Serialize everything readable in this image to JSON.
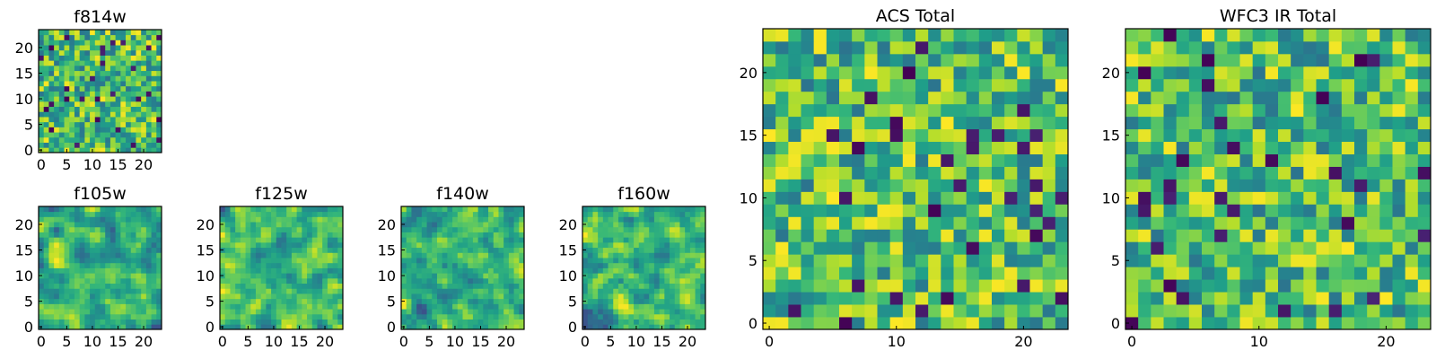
{
  "figure": {
    "colormap": "viridis"
  },
  "chart_data": [
    {
      "type": "heatmap",
      "title": "f814w",
      "grid_size": 24,
      "xlim": [
        0,
        24
      ],
      "ylim": [
        0,
        24
      ],
      "xticks": [
        0,
        5,
        10,
        15,
        20
      ],
      "yticks": [
        0,
        5,
        10,
        15,
        20
      ],
      "seed": 814,
      "smoothing": 0
    },
    {
      "type": "heatmap",
      "title": "f105w",
      "grid_size": 24,
      "xlim": [
        0,
        24
      ],
      "ylim": [
        0,
        24
      ],
      "xticks": [
        0,
        5,
        10,
        15,
        20
      ],
      "yticks": [
        0,
        5,
        10,
        15,
        20
      ],
      "seed": 105,
      "smoothing": 1
    },
    {
      "type": "heatmap",
      "title": "f125w",
      "grid_size": 24,
      "xlim": [
        0,
        24
      ],
      "ylim": [
        0,
        24
      ],
      "xticks": [
        0,
        5,
        10,
        15,
        20
      ],
      "yticks": [
        0,
        5,
        10,
        15,
        20
      ],
      "seed": 125,
      "smoothing": 1
    },
    {
      "type": "heatmap",
      "title": "f140w",
      "grid_size": 24,
      "xlim": [
        0,
        24
      ],
      "ylim": [
        0,
        24
      ],
      "xticks": [
        0,
        5,
        10,
        15,
        20
      ],
      "yticks": [
        0,
        5,
        10,
        15,
        20
      ],
      "seed": 140,
      "smoothing": 1
    },
    {
      "type": "heatmap",
      "title": "f160w",
      "grid_size": 24,
      "xlim": [
        0,
        24
      ],
      "ylim": [
        0,
        24
      ],
      "xticks": [
        0,
        5,
        10,
        15,
        20
      ],
      "yticks": [
        0,
        5,
        10,
        15,
        20
      ],
      "seed": 160,
      "smoothing": 1
    },
    {
      "type": "heatmap",
      "title": "ACS Total",
      "grid_size": 24,
      "xlim": [
        0,
        24
      ],
      "ylim": [
        0,
        24
      ],
      "xticks": [
        0,
        10,
        20
      ],
      "yticks": [
        0,
        5,
        10,
        15,
        20
      ],
      "seed": 301,
      "smoothing": 0
    },
    {
      "type": "heatmap",
      "title": "WFC3 IR Total",
      "grid_size": 24,
      "xlim": [
        0,
        24
      ],
      "ylim": [
        0,
        24
      ],
      "xticks": [
        0,
        10,
        20
      ],
      "yticks": [
        0,
        5,
        10,
        15,
        20
      ],
      "seed": 302,
      "smoothing": 0
    }
  ]
}
